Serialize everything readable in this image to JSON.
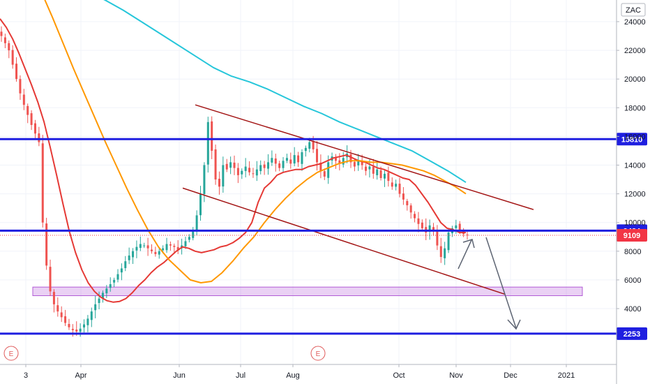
{
  "symbol": "ZAC",
  "event_marker_label": "E",
  "chart_data": {
    "type": "candlestick",
    "x_labels": [
      "3",
      "Apr",
      "Jun",
      "Jul",
      "Aug",
      "Oct",
      "Nov",
      "Dec",
      "2021"
    ],
    "y_ticks": [
      24000,
      22000,
      20000,
      18000,
      16000,
      14000,
      12000,
      10000,
      8000,
      6000,
      4000
    ],
    "ylim": [
      0,
      25800
    ],
    "horizontal_levels": [
      {
        "value": 15810,
        "label": "15810",
        "color": "#1f1fe0"
      },
      {
        "value": 9434,
        "label": "9434",
        "color": "#1f1fe0"
      },
      {
        "value": 2253,
        "label": "2253",
        "color": "#1f1fe0"
      }
    ],
    "last_price": {
      "value": 9109,
      "label": "9109",
      "color": "#f23645"
    },
    "support_zone": {
      "low": 4900,
      "high": 5500,
      "color": "#b25bd6"
    },
    "colors": {
      "up": "#26a69a",
      "down": "#ef5350",
      "ma_fast": "#e53935",
      "ma_mid": "#ff9800",
      "ma_slow": "#26c6da",
      "channel": "#a31515",
      "arrows": "#5d6472"
    },
    "candles_close": [
      23000,
      22500,
      22000,
      21000,
      20000,
      19000,
      18200,
      17500,
      16800,
      16200,
      15600,
      10000,
      7000,
      5200,
      4300,
      3800,
      3400,
      3000,
      2700,
      2500,
      2400,
      2600,
      2900,
      3300,
      3800,
      4300,
      4700,
      5100,
      5400,
      5700,
      6000,
      6400,
      6800,
      7300,
      7700,
      8000,
      8300,
      8500,
      8400,
      8200,
      8000,
      7800,
      8000,
      8200,
      8500,
      8400,
      8300,
      8100,
      8400,
      8700,
      9000,
      9400,
      10500,
      12000,
      14000,
      17000,
      15000,
      13000,
      12500,
      14000,
      13700,
      14200,
      13800,
      13300,
      13600,
      13900,
      13500,
      13400,
      13700,
      14000,
      13800,
      14200,
      14500,
      14100,
      13800,
      14300,
      14500,
      14100,
      14700,
      14200,
      14900,
      15200,
      15600,
      15100,
      14200,
      13600,
      13200,
      14200,
      14600,
      14300,
      14100,
      14500,
      14800,
      14200,
      13900,
      14300,
      14000,
      13600,
      13900,
      13400,
      13700,
      13100,
      13400,
      12900,
      12500,
      12700,
      12000,
      11600,
      11200,
      10700,
      10300,
      9900,
      9600,
      9300,
      9800,
      9500,
      8400,
      7600,
      8200,
      9300,
      9600,
      9800,
      9500,
      9200,
      9109
    ],
    "ma_fast": [
      24200,
      23600,
      22800,
      21800,
      20700,
      19600,
      18400,
      17000,
      15200,
      13300,
      11300,
      9400,
      7900,
      6700,
      5800,
      5200,
      4800,
      4550,
      4450,
      4500,
      4700,
      5100,
      5600,
      6000,
      6500,
      6900,
      7200,
      7600,
      8000,
      8300,
      8200,
      8000,
      7900,
      8000,
      8100,
      8300,
      8400,
      8600,
      8900,
      9300,
      10000,
      11400,
      12400,
      12800,
      13300,
      13500,
      13600,
      13700,
      13700,
      13900,
      14000,
      14100,
      14300,
      14500,
      14600,
      14700,
      14500,
      14300,
      14200,
      14000,
      13800,
      13700,
      13500,
      13300,
      13100,
      13000,
      12600,
      12000,
      11400,
      10700,
      10000,
      9600,
      9500,
      9300,
      9300
    ],
    "ma_mid": [
      26000,
      24300,
      22500,
      20700,
      19000,
      17300,
      15600,
      14000,
      12400,
      10900,
      9500,
      8300,
      7400,
      6700,
      6000,
      5800,
      5900,
      6500,
      7300,
      8200,
      9000,
      10000,
      10900,
      11700,
      12400,
      13000,
      13500,
      13800,
      14100,
      14300,
      14300,
      14200,
      14200,
      14100,
      14000,
      13800,
      13600,
      13300,
      12900,
      12500,
      12000
    ],
    "ma_slow": [
      26100,
      25500,
      24800,
      24000,
      23200,
      22400,
      21600,
      20800,
      20200,
      19800,
      19300,
      18700,
      18100,
      17600,
      17000,
      16500,
      16000,
      15500,
      15000,
      14300,
      13600,
      12800
    ]
  }
}
